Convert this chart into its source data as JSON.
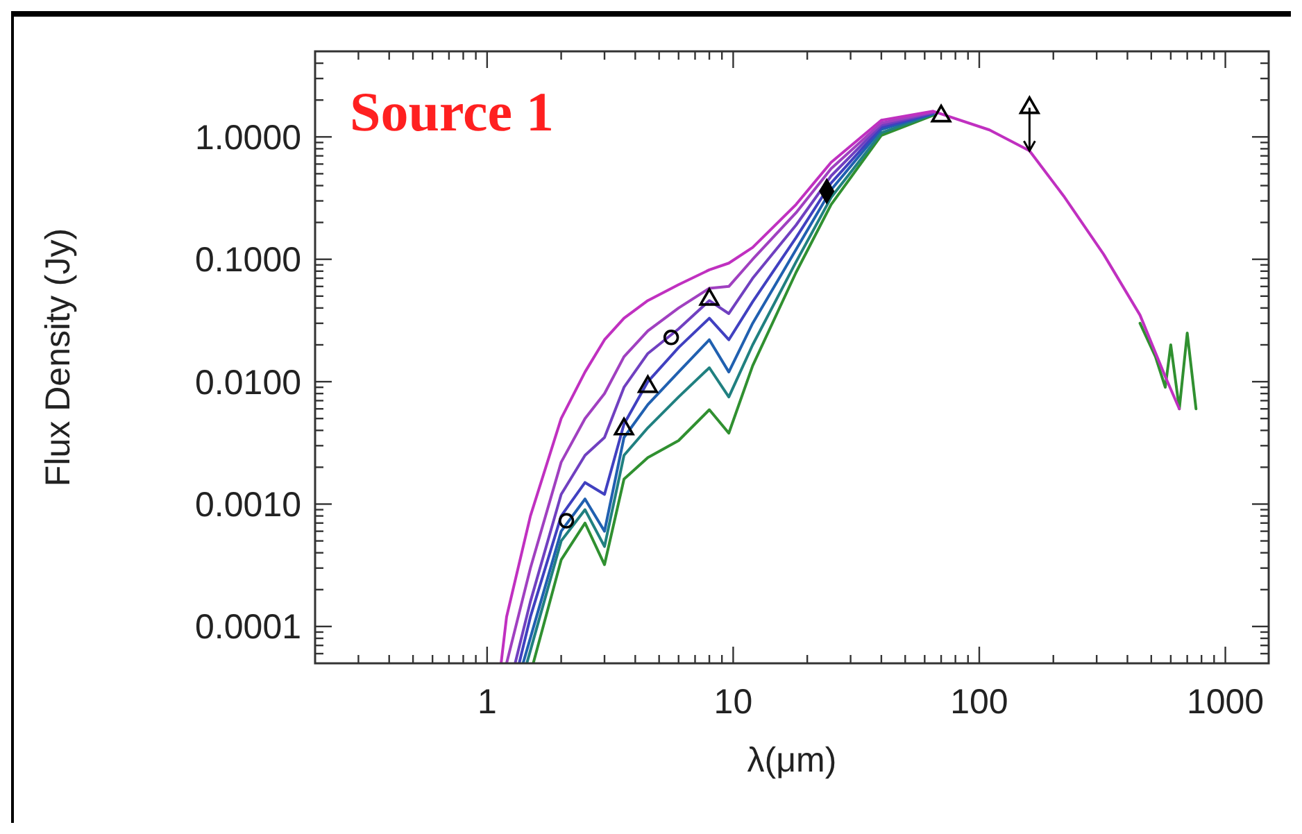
{
  "chart_data": {
    "type": "line",
    "title": "Source 1",
    "xlabel": "λ(μm)",
    "ylabel": "Flux Density (Jy)",
    "log": "xy",
    "grid": false,
    "marker": "none",
    "line_style": "solid",
    "xlim": [
      0.2,
      1500
    ],
    "ylim": [
      5e-05,
      5
    ],
    "xticks": [
      {
        "value": 0.3,
        "label": null
      },
      {
        "value": 0.4,
        "label": null
      },
      {
        "value": 0.5,
        "label": null
      },
      {
        "value": 0.6,
        "label": null
      },
      {
        "value": 0.7,
        "label": null
      },
      {
        "value": 0.8,
        "label": null
      },
      {
        "value": 0.9,
        "label": null
      },
      1,
      {
        "value": 2,
        "label": null
      },
      {
        "value": 3,
        "label": null
      },
      {
        "value": 4,
        "label": null
      },
      {
        "value": 5,
        "label": null
      },
      {
        "value": 6,
        "label": null
      },
      {
        "value": 7,
        "label": null
      },
      {
        "value": 8,
        "label": null
      },
      {
        "value": 9,
        "label": null
      },
      10,
      {
        "value": 20,
        "label": null
      },
      {
        "value": 30,
        "label": null
      },
      {
        "value": 40,
        "label": null
      },
      {
        "value": 50,
        "label": null
      },
      {
        "value": 60,
        "label": null
      },
      {
        "value": 70,
        "label": null
      },
      {
        "value": 80,
        "label": null
      },
      {
        "value": 90,
        "label": null
      },
      100,
      {
        "value": 200,
        "label": null
      },
      {
        "value": 300,
        "label": null
      },
      {
        "value": 400,
        "label": null
      },
      {
        "value": 500,
        "label": null
      },
      {
        "value": 600,
        "label": null
      },
      {
        "value": 700,
        "label": null
      },
      {
        "value": 800,
        "label": null
      },
      {
        "value": 900,
        "label": null
      },
      1000
    ],
    "yticks": [
      {
        "value": 6e-05,
        "label": null
      },
      {
        "value": 7e-05,
        "label": null
      },
      {
        "value": 8e-05,
        "label": null
      },
      {
        "value": 9e-05,
        "label": null
      },
      {
        "value": 0.0001,
        "label": "0.0001"
      },
      {
        "value": 0.0002,
        "label": null
      },
      {
        "value": 0.0003,
        "label": null
      },
      {
        "value": 0.0004,
        "label": null
      },
      {
        "value": 0.0005,
        "label": null
      },
      {
        "value": 0.0006,
        "label": null
      },
      {
        "value": 0.0007,
        "label": null
      },
      {
        "value": 0.0008,
        "label": null
      },
      {
        "value": 0.0009,
        "label": null
      },
      {
        "value": 0.001,
        "label": "0.0010"
      },
      {
        "value": 0.002,
        "label": null
      },
      {
        "value": 0.003,
        "label": null
      },
      {
        "value": 0.004,
        "label": null
      },
      {
        "value": 0.005,
        "label": null
      },
      {
        "value": 0.006,
        "label": null
      },
      {
        "value": 0.007,
        "label": null
      },
      {
        "value": 0.008,
        "label": null
      },
      {
        "value": 0.009,
        "label": null
      },
      {
        "value": 0.01,
        "label": "0.0100"
      },
      {
        "value": 0.02,
        "label": null
      },
      {
        "value": 0.03,
        "label": null
      },
      {
        "value": 0.04,
        "label": null
      },
      {
        "value": 0.05,
        "label": null
      },
      {
        "value": 0.06,
        "label": null
      },
      {
        "value": 0.07,
        "label": null
      },
      {
        "value": 0.08,
        "label": null
      },
      {
        "value": 0.09,
        "label": null
      },
      {
        "value": 0.1,
        "label": "0.1000"
      },
      {
        "value": 0.2,
        "label": null
      },
      {
        "value": 0.3,
        "label": null
      },
      {
        "value": 0.4,
        "label": null
      },
      {
        "value": 0.5,
        "label": null
      },
      {
        "value": 0.6,
        "label": null
      },
      {
        "value": 0.7,
        "label": null
      },
      {
        "value": 0.8,
        "label": null
      },
      {
        "value": 0.9,
        "label": null
      },
      {
        "value": 1,
        "label": "1.0000"
      },
      {
        "value": 2,
        "label": null
      },
      {
        "value": 3,
        "label": null
      },
      {
        "value": 4,
        "label": null
      }
    ],
    "series": [
      {
        "color": "#c030c0",
        "x": [
          1.14,
          1.2,
          1.5,
          2,
          2.5,
          3,
          3.6,
          4.5,
          6,
          8,
          9.6,
          12,
          18,
          25,
          40,
          65,
          110,
          160,
          220,
          320,
          450,
          570,
          650
        ],
        "values": [
          5e-05,
          0.00012,
          0.0008,
          0.005,
          0.012,
          0.022,
          0.033,
          0.046,
          0.062,
          0.082,
          0.093,
          0.125,
          0.28,
          0.62,
          1.37,
          1.62,
          1.14,
          0.77,
          0.33,
          0.11,
          0.035,
          0.011,
          0.006
        ]
      },
      {
        "color": "#a040c0",
        "x": [
          1.2,
          1.5,
          2,
          2.5,
          3,
          3.6,
          4.5,
          6,
          8,
          9.6,
          12,
          18,
          25,
          40,
          65
        ],
        "values": [
          5e-05,
          0.0003,
          0.0022,
          0.005,
          0.008,
          0.016,
          0.026,
          0.04,
          0.058,
          0.06,
          0.1,
          0.24,
          0.55,
          1.3,
          1.6
        ]
      },
      {
        "color": "#7040c0",
        "x": [
          1.3,
          1.5,
          2,
          2.5,
          3,
          3.6,
          4.5,
          6,
          8,
          9.6,
          12,
          18,
          25,
          40,
          65
        ],
        "values": [
          5e-05,
          0.00016,
          0.0012,
          0.0025,
          0.0035,
          0.009,
          0.017,
          0.027,
          0.046,
          0.036,
          0.07,
          0.19,
          0.48,
          1.25,
          1.58
        ]
      },
      {
        "color": "#4040c0",
        "x": [
          1.35,
          1.5,
          2,
          2.5,
          3,
          3.6,
          4.5,
          6,
          8,
          9.6,
          12,
          18,
          25,
          40,
          65
        ],
        "values": [
          5e-05,
          0.00012,
          0.0008,
          0.0015,
          0.0012,
          0.0045,
          0.01,
          0.019,
          0.033,
          0.022,
          0.045,
          0.15,
          0.42,
          1.2,
          1.56
        ]
      },
      {
        "color": "#2060b0",
        "x": [
          1.4,
          2,
          2.5,
          3,
          3.6,
          4.5,
          6,
          8,
          9.6,
          12,
          18,
          25,
          40,
          65
        ],
        "values": [
          5e-05,
          0.0006,
          0.0011,
          0.0006,
          0.0035,
          0.0065,
          0.012,
          0.022,
          0.012,
          0.03,
          0.12,
          0.37,
          1.15,
          1.55
        ]
      },
      {
        "color": "#208080",
        "x": [
          1.45,
          2,
          2.5,
          3,
          3.6,
          4.5,
          6,
          8,
          9.6,
          12,
          18,
          25,
          40,
          65
        ],
        "values": [
          5e-05,
          0.0005,
          0.0009,
          0.00045,
          0.0025,
          0.0042,
          0.0075,
          0.013,
          0.0075,
          0.02,
          0.095,
          0.32,
          1.08,
          1.53
        ]
      },
      {
        "color": "#309030",
        "x": [
          1.54,
          2,
          2.5,
          3,
          3.6,
          4.5,
          6,
          8,
          9.6,
          12,
          18,
          25,
          40,
          65,
          110,
          450,
          520,
          570,
          600,
          650,
          700,
          760
        ],
        "values": [
          5e-05,
          0.00035,
          0.0007,
          0.00032,
          0.0016,
          0.0024,
          0.0033,
          0.0059,
          0.0038,
          0.0135,
          0.078,
          0.28,
          1.03,
          1.5,
          null,
          0.03,
          0.016,
          0.009,
          0.02,
          0.006,
          0.025,
          0.006
        ]
      },
      {
        "type": "scatter",
        "marker": "triangle",
        "color": "#000000",
        "x": [
          3.6,
          4.5,
          8,
          70,
          160
        ],
        "values": [
          0.0041,
          0.0091,
          0.047,
          1.48,
          1.73
        ],
        "errors": [
          null,
          null,
          null,
          null,
          [
            0.77,
            1.73
          ]
        ]
      },
      {
        "type": "scatter",
        "marker": "circle",
        "color": "#000000",
        "x": [
          2.1,
          5.6
        ],
        "values": [
          0.00073,
          0.023
        ]
      },
      {
        "type": "scatter",
        "marker": "diamond",
        "color": "#000000",
        "x": [
          24
        ],
        "values": [
          0.36
        ]
      }
    ]
  }
}
